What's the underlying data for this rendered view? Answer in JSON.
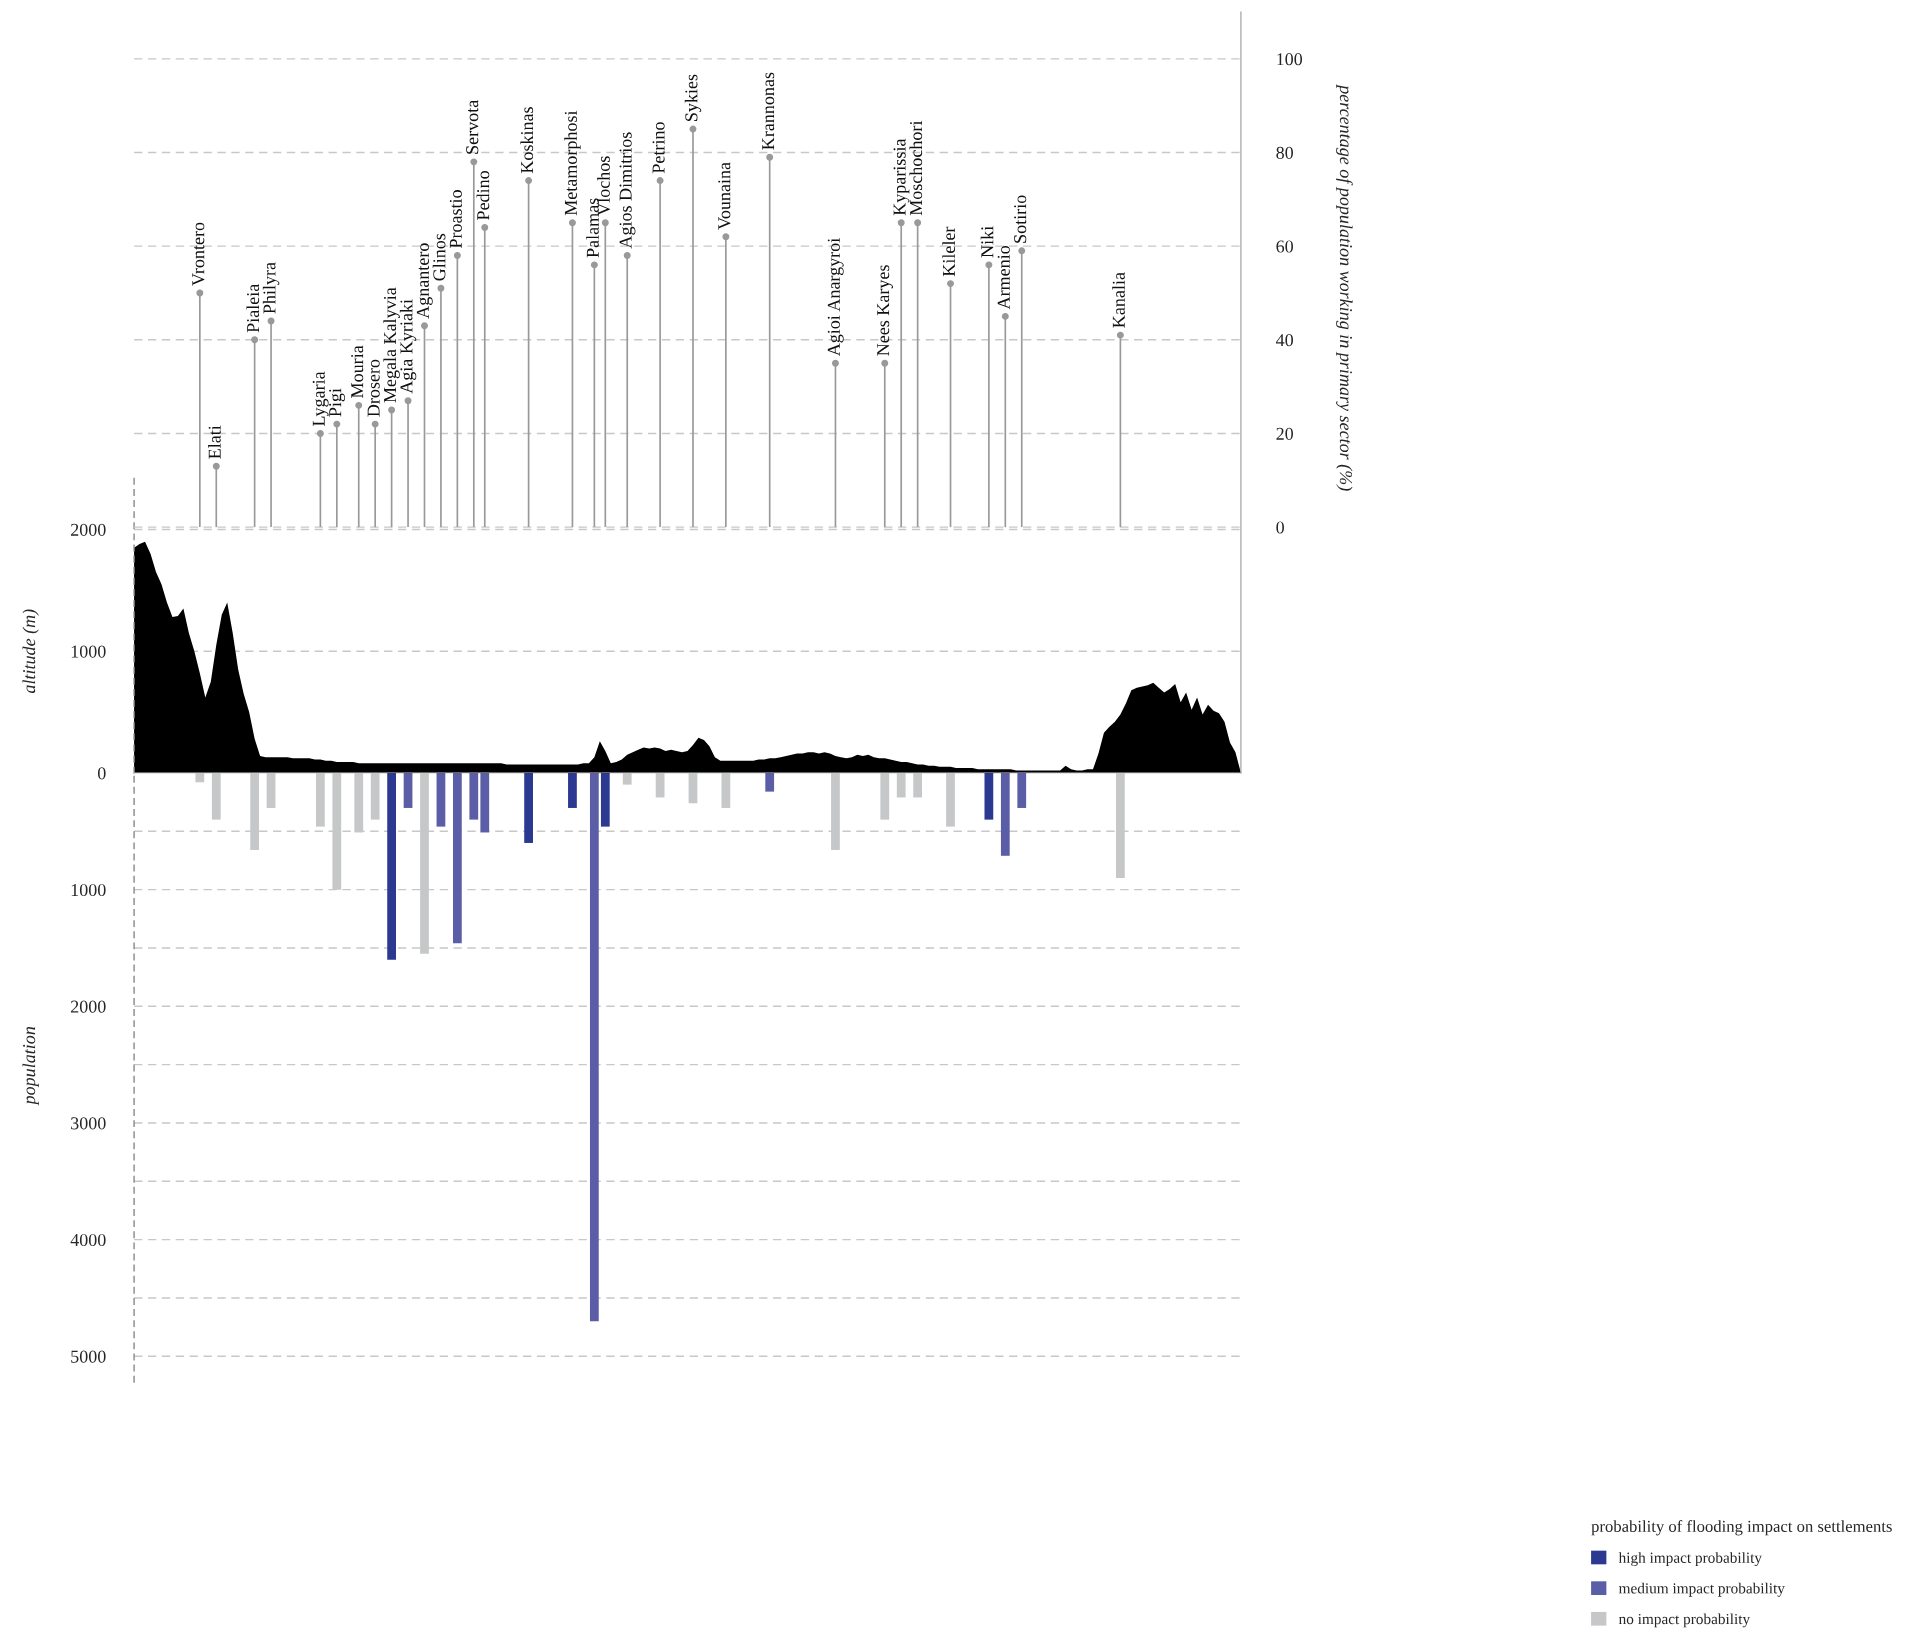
{
  "chart_data": [
    {
      "type": "area",
      "ylabel": "altitude (m)",
      "ylim": [
        0,
        6250
      ],
      "yticks": [
        0,
        1000,
        2000
      ],
      "y2label": "percentage of population working in primary sector (%)",
      "y2lim": [
        -52.5,
        110
      ],
      "y2ticks": [
        0,
        20,
        40,
        60,
        80,
        100
      ],
      "grid": true,
      "categories": [
        null,
        null,
        null,
        null,
        null,
        null,
        null,
        null,
        null,
        null,
        null,
        null,
        "Vrontero",
        null,
        null,
        "Elati",
        null,
        null,
        null,
        null,
        null,
        null,
        "Pialeia",
        null,
        null,
        "Philyra",
        null,
        null,
        null,
        null,
        null,
        null,
        null,
        null,
        "Lygaria",
        null,
        null,
        "Pigi",
        null,
        null,
        null,
        "Mouria",
        null,
        null,
        "Drosero",
        null,
        null,
        "Megala Kalyvia",
        null,
        null,
        "Agia Kyriaki",
        null,
        null,
        "Agnantero",
        null,
        null,
        "Glinos",
        null,
        null,
        "Proastio",
        null,
        null,
        "Servota",
        null,
        "Pedino",
        null,
        null,
        null,
        null,
        null,
        null,
        null,
        "Koskinas",
        null,
        null,
        null,
        null,
        null,
        null,
        null,
        "Metamorphosi",
        null,
        null,
        null,
        "Palamas",
        null,
        "Vlochos",
        null,
        null,
        null,
        "Agios Dimitrios",
        null,
        null,
        null,
        null,
        null,
        "Petrino",
        null,
        null,
        null,
        null,
        null,
        "Sykies",
        null,
        null,
        null,
        null,
        null,
        "Vounaina",
        null,
        null,
        null,
        null,
        null,
        null,
        null,
        "Krannonas",
        null,
        null,
        null,
        null,
        null,
        null,
        null,
        null,
        null,
        null,
        null,
        "Agioi Anargyroi",
        null,
        null,
        null,
        null,
        null,
        null,
        null,
        null,
        "Nees Karyes",
        null,
        null,
        "Kyparissia",
        null,
        null,
        "Moschochori",
        null,
        null,
        null,
        null,
        null,
        "Kileler",
        null,
        null,
        null,
        null,
        null,
        null,
        "Niki",
        null,
        null,
        "Armenio",
        null,
        null,
        "Sotirio",
        null,
        null,
        null,
        null,
        null,
        null,
        null,
        null,
        null,
        null,
        null,
        null,
        null,
        null,
        null,
        null,
        null,
        "Kanalia",
        null,
        null,
        null,
        null,
        null,
        null,
        null,
        null,
        null,
        null,
        null,
        null,
        null,
        null,
        null,
        null,
        null,
        null,
        null,
        null,
        null,
        null
      ],
      "series": [
        {
          "type": "area",
          "color": "#000000",
          "values": [
            1850,
            1880,
            1900,
            1800,
            1650,
            1550,
            1400,
            1280,
            1290,
            1350,
            1150,
            1000,
            820,
            620,
            750,
            1050,
            1300,
            1400,
            1150,
            850,
            650,
            500,
            280,
            140,
            130,
            130,
            130,
            130,
            130,
            120,
            120,
            120,
            120,
            110,
            110,
            100,
            100,
            90,
            90,
            90,
            90,
            80,
            80,
            80,
            80,
            80,
            80,
            80,
            80,
            80,
            80,
            80,
            80,
            80,
            80,
            80,
            80,
            80,
            80,
            80,
            80,
            80,
            80,
            80,
            80,
            80,
            80,
            80,
            70,
            70,
            70,
            70,
            70,
            70,
            70,
            70,
            70,
            70,
            70,
            70,
            70,
            70,
            80,
            80,
            130,
            260,
            180,
            80,
            90,
            110,
            150,
            170,
            190,
            210,
            200,
            210,
            200,
            180,
            190,
            180,
            170,
            180,
            230,
            290,
            270,
            220,
            130,
            100,
            100,
            100,
            100,
            100,
            100,
            100,
            110,
            110,
            120,
            120,
            130,
            140,
            150,
            160,
            160,
            170,
            170,
            160,
            170,
            160,
            140,
            130,
            120,
            130,
            150,
            140,
            150,
            130,
            120,
            120,
            110,
            100,
            90,
            90,
            80,
            70,
            70,
            60,
            60,
            50,
            50,
            50,
            40,
            40,
            40,
            40,
            30,
            30,
            30,
            30,
            30,
            30,
            30,
            20,
            20,
            20,
            20,
            20,
            20,
            20,
            20,
            20,
            60,
            30,
            20,
            20,
            30,
            30,
            160,
            330,
            380,
            420,
            480,
            570,
            680,
            700,
            710,
            720,
            740,
            700,
            660,
            690,
            730,
            580,
            660,
            520,
            620,
            480,
            560,
            510,
            490,
            420,
            250,
            170,
            0
          ]
        },
        {
          "type": "lollipop",
          "axis": "y2",
          "color": "#999999",
          "marker": "circle",
          "values": [
            null,
            null,
            null,
            null,
            null,
            null,
            null,
            null,
            null,
            null,
            null,
            null,
            50,
            null,
            null,
            13,
            null,
            null,
            null,
            null,
            null,
            null,
            40,
            null,
            null,
            44,
            null,
            null,
            null,
            null,
            null,
            null,
            null,
            null,
            20,
            null,
            null,
            22,
            null,
            null,
            null,
            26,
            null,
            null,
            22,
            null,
            null,
            25,
            null,
            null,
            27,
            null,
            null,
            43,
            null,
            null,
            51,
            null,
            null,
            58,
            null,
            null,
            78,
            null,
            64,
            null,
            null,
            null,
            null,
            null,
            null,
            null,
            74,
            null,
            null,
            null,
            null,
            null,
            null,
            null,
            65,
            null,
            null,
            null,
            56,
            null,
            65,
            null,
            null,
            null,
            58,
            null,
            null,
            null,
            null,
            null,
            74,
            null,
            null,
            null,
            null,
            null,
            85,
            null,
            null,
            null,
            null,
            null,
            62,
            null,
            null,
            null,
            null,
            null,
            null,
            null,
            79,
            null,
            null,
            null,
            null,
            null,
            null,
            null,
            null,
            null,
            null,
            null,
            35,
            null,
            null,
            null,
            null,
            null,
            null,
            null,
            null,
            35,
            null,
            null,
            65,
            null,
            null,
            65,
            null,
            null,
            null,
            null,
            null,
            52,
            null,
            null,
            null,
            null,
            null,
            null,
            56,
            null,
            null,
            45,
            null,
            null,
            59,
            null,
            null,
            null,
            null,
            null,
            null,
            null,
            null,
            null,
            null,
            null,
            null,
            null,
            null,
            null,
            null,
            null,
            41,
            null,
            null,
            null,
            null,
            null,
            null,
            null,
            null,
            null,
            null,
            null,
            null,
            null,
            null,
            null,
            null,
            null,
            null,
            null,
            null,
            null,
            null
          ]
        }
      ]
    },
    {
      "type": "bar",
      "ylabel": "population",
      "ylim": [
        5220,
        0
      ],
      "yticks": [
        {
          "value": 500,
          "label": null
        },
        1000,
        {
          "value": 1500,
          "label": null
        },
        2000,
        {
          "value": 2500,
          "label": null
        },
        3000,
        {
          "value": 3500,
          "label": null
        },
        4000,
        {
          "value": 4500,
          "label": null
        },
        5000
      ],
      "grid": "y",
      "tick_labels": "y",
      "legend": "bottom right",
      "legend_title": "probability of flooding impact on settlements",
      "categories": [
        null,
        null,
        null,
        null,
        null,
        null,
        null,
        null,
        null,
        null,
        null,
        null,
        null,
        null,
        null,
        null,
        null,
        null,
        null,
        null,
        null,
        null,
        null,
        null,
        null,
        null,
        null,
        null,
        null,
        null,
        null,
        null,
        null,
        null,
        null,
        null,
        null,
        null,
        null,
        null,
        null,
        null,
        null,
        null,
        null,
        null,
        null,
        null,
        null,
        null,
        null,
        null,
        null,
        null,
        null,
        null,
        null,
        null,
        null,
        null,
        null,
        null,
        null,
        null,
        null,
        null,
        null,
        null,
        null,
        null,
        null,
        null,
        null,
        null,
        null,
        null,
        null,
        null,
        null,
        null,
        null,
        null,
        null,
        null,
        null,
        null,
        null,
        null,
        null,
        null,
        null,
        null,
        null,
        null,
        null,
        null,
        null,
        null,
        null,
        null,
        null,
        null,
        null,
        null,
        null,
        null,
        null,
        null,
        null,
        null,
        null,
        null,
        null,
        null,
        null,
        null,
        null,
        null,
        null,
        null,
        null,
        null,
        null,
        null,
        null,
        null,
        null,
        null,
        null,
        null,
        null,
        null,
        null,
        null,
        null,
        null,
        null,
        null,
        null,
        null,
        null,
        null,
        null,
        null,
        null,
        null,
        null,
        null,
        null,
        null,
        null,
        null,
        null,
        null,
        null,
        null,
        null,
        null,
        null,
        null,
        null,
        null,
        null,
        null,
        null,
        null,
        null,
        null,
        null,
        null,
        null,
        null,
        null,
        null,
        null,
        null,
        null,
        null,
        null,
        null,
        null,
        null,
        null,
        null,
        null,
        null,
        null,
        null,
        null,
        null,
        null,
        null,
        null,
        null,
        null,
        null,
        null,
        null,
        null,
        null,
        null,
        null,
        null
      ],
      "series": [
        {
          "name": "high impact probability",
          "color": "#2b3990",
          "values": [
            null,
            null,
            null,
            null,
            null,
            null,
            null,
            null,
            null,
            null,
            null,
            null,
            null,
            null,
            null,
            null,
            null,
            null,
            null,
            null,
            null,
            null,
            null,
            null,
            null,
            null,
            null,
            null,
            null,
            null,
            null,
            null,
            null,
            null,
            null,
            null,
            null,
            null,
            null,
            null,
            null,
            null,
            null,
            null,
            null,
            null,
            null,
            1600,
            null,
            null,
            null,
            null,
            null,
            null,
            null,
            null,
            null,
            null,
            null,
            null,
            null,
            null,
            null,
            null,
            null,
            null,
            null,
            null,
            null,
            null,
            null,
            null,
            600,
            null,
            null,
            null,
            null,
            null,
            null,
            null,
            300,
            null,
            null,
            null,
            null,
            null,
            460,
            null,
            null,
            null,
            null,
            null,
            null,
            null,
            null,
            null,
            null,
            null,
            null,
            null,
            null,
            null,
            null,
            null,
            null,
            null,
            null,
            null,
            null,
            null,
            null,
            null,
            null,
            null,
            null,
            null,
            null,
            null,
            null,
            null,
            null,
            null,
            null,
            null,
            null,
            null,
            null,
            null,
            null,
            null,
            null,
            null,
            null,
            null,
            null,
            null,
            null,
            null,
            null,
            null,
            null,
            null,
            null,
            null,
            null,
            null,
            null,
            null,
            null,
            null,
            null,
            null,
            null,
            null,
            null,
            null,
            400,
            null,
            null,
            null,
            null,
            null,
            null,
            null,
            null,
            null,
            null,
            null,
            null,
            null,
            null,
            null,
            null,
            null,
            null,
            null,
            null,
            null,
            null,
            null,
            null,
            null,
            null,
            null,
            null,
            null,
            null,
            null,
            null,
            null,
            null,
            null,
            null,
            null,
            null,
            null,
            null,
            null,
            null,
            null,
            null,
            null,
            null
          ]
        },
        {
          "name": "medium impact probability",
          "color": "#5b5ea6",
          "values": [
            null,
            null,
            null,
            null,
            null,
            null,
            null,
            null,
            null,
            null,
            null,
            null,
            null,
            null,
            null,
            null,
            null,
            null,
            null,
            null,
            null,
            null,
            null,
            null,
            null,
            null,
            null,
            null,
            null,
            null,
            null,
            null,
            null,
            null,
            null,
            null,
            null,
            null,
            null,
            null,
            null,
            null,
            null,
            null,
            null,
            null,
            null,
            null,
            null,
            null,
            300,
            null,
            null,
            null,
            null,
            null,
            460,
            null,
            null,
            1460,
            null,
            null,
            400,
            null,
            510,
            null,
            null,
            null,
            null,
            null,
            null,
            null,
            null,
            null,
            null,
            null,
            null,
            null,
            null,
            null,
            null,
            null,
            null,
            null,
            4700,
            null,
            null,
            null,
            null,
            null,
            null,
            null,
            null,
            null,
            null,
            null,
            null,
            null,
            null,
            null,
            null,
            null,
            null,
            null,
            null,
            null,
            null,
            null,
            null,
            null,
            null,
            null,
            null,
            null,
            null,
            null,
            160,
            null,
            null,
            null,
            null,
            null,
            null,
            null,
            null,
            null,
            null,
            null,
            null,
            null,
            null,
            null,
            null,
            null,
            null,
            null,
            null,
            null,
            null,
            null,
            null,
            null,
            null,
            null,
            null,
            null,
            null,
            null,
            null,
            null,
            null,
            null,
            null,
            null,
            null,
            null,
            null,
            null,
            null,
            710,
            null,
            null,
            300,
            null,
            null,
            null,
            null,
            null,
            null,
            null,
            null,
            null,
            null,
            null,
            null,
            null,
            null,
            null,
            null,
            null,
            null,
            null,
            null,
            null,
            null,
            null,
            null,
            null,
            null,
            null,
            null,
            null,
            null,
            null,
            null,
            null,
            null,
            null,
            null,
            null,
            null,
            null,
            null
          ]
        },
        {
          "name": "no impact probability",
          "color": "#c6c7c9",
          "values": [
            null,
            null,
            null,
            null,
            null,
            null,
            null,
            null,
            null,
            null,
            null,
            null,
            80,
            null,
            null,
            400,
            null,
            null,
            null,
            null,
            null,
            null,
            660,
            null,
            null,
            300,
            null,
            null,
            null,
            null,
            null,
            null,
            null,
            null,
            460,
            null,
            null,
            1000,
            null,
            null,
            null,
            510,
            null,
            null,
            400,
            null,
            null,
            null,
            null,
            null,
            null,
            null,
            null,
            1550,
            null,
            null,
            null,
            null,
            null,
            null,
            null,
            null,
            null,
            null,
            null,
            null,
            null,
            null,
            null,
            null,
            null,
            null,
            null,
            null,
            null,
            null,
            null,
            null,
            null,
            null,
            null,
            null,
            null,
            null,
            null,
            null,
            null,
            null,
            null,
            null,
            100,
            null,
            null,
            null,
            null,
            null,
            210,
            null,
            null,
            null,
            null,
            null,
            260,
            null,
            null,
            null,
            null,
            null,
            300,
            null,
            null,
            null,
            null,
            null,
            null,
            null,
            null,
            null,
            null,
            null,
            null,
            null,
            null,
            null,
            null,
            null,
            null,
            null,
            660,
            null,
            null,
            null,
            null,
            null,
            null,
            null,
            null,
            400,
            null,
            null,
            210,
            null,
            null,
            210,
            null,
            null,
            null,
            null,
            null,
            460,
            null,
            null,
            null,
            null,
            null,
            null,
            null,
            null,
            null,
            null,
            null,
            null,
            null,
            null,
            null,
            null,
            null,
            null,
            null,
            null,
            null,
            null,
            null,
            null,
            null,
            null,
            null,
            null,
            null,
            null,
            900,
            null,
            null,
            null,
            null,
            null,
            null,
            null,
            null,
            null,
            null,
            null,
            null,
            null,
            null,
            null,
            null,
            null,
            null,
            null,
            null,
            null,
            null
          ]
        }
      ]
    }
  ]
}
